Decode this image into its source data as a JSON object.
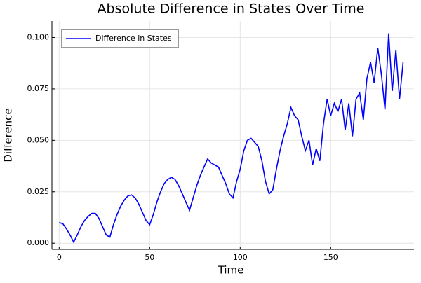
{
  "chart_data": {
    "type": "line",
    "title": "Absolute Difference in States Over Time",
    "x_label": "Time",
    "y_label": "Difference",
    "x": [
      0,
      2,
      4,
      6,
      8,
      10,
      12,
      14,
      16,
      18,
      20,
      22,
      24,
      26,
      28,
      30,
      32,
      34,
      36,
      38,
      40,
      42,
      44,
      46,
      48,
      50,
      52,
      54,
      56,
      58,
      60,
      62,
      64,
      66,
      68,
      70,
      72,
      74,
      76,
      78,
      80,
      82,
      84,
      86,
      88,
      90,
      92,
      94,
      96,
      98,
      100,
      102,
      104,
      106,
      108,
      110,
      112,
      114,
      116,
      118,
      120,
      122,
      124,
      126,
      128,
      130,
      132,
      134,
      136,
      138,
      140,
      142,
      144,
      146,
      148,
      150,
      152,
      154,
      156,
      158,
      160,
      162,
      164,
      166,
      168,
      170,
      172,
      174,
      176,
      178,
      180,
      182,
      184,
      186,
      188,
      190
    ],
    "series": [
      {
        "name": "Difference in States",
        "color": "#0000ff",
        "values": [
          0.01,
          0.0095,
          0.007,
          0.004,
          0.0005,
          0.004,
          0.008,
          0.011,
          0.013,
          0.0145,
          0.0145,
          0.012,
          0.008,
          0.004,
          0.003,
          0.009,
          0.014,
          0.018,
          0.021,
          0.023,
          0.0235,
          0.022,
          0.019,
          0.015,
          0.011,
          0.009,
          0.014,
          0.02,
          0.025,
          0.029,
          0.031,
          0.032,
          0.031,
          0.028,
          0.024,
          0.02,
          0.016,
          0.022,
          0.028,
          0.033,
          0.037,
          0.041,
          0.039,
          0.038,
          0.037,
          0.033,
          0.029,
          0.024,
          0.022,
          0.03,
          0.036,
          0.045,
          0.05,
          0.051,
          0.049,
          0.047,
          0.04,
          0.03,
          0.024,
          0.026,
          0.036,
          0.045,
          0.052,
          0.058,
          0.066,
          0.062,
          0.06,
          0.052,
          0.045,
          0.05,
          0.038,
          0.046,
          0.04,
          0.058,
          0.07,
          0.062,
          0.068,
          0.064,
          0.07,
          0.055,
          0.068,
          0.052,
          0.07,
          0.073,
          0.06,
          0.08,
          0.088,
          0.078,
          0.095,
          0.082,
          0.065,
          0.102,
          0.074,
          0.094,
          0.07,
          0.088
        ]
      }
    ],
    "xlim": [
      -4,
      196
    ],
    "ylim": [
      -0.003,
      0.108
    ],
    "xticks": [
      0,
      50,
      100,
      150
    ],
    "yticks": [
      {
        "value": 0,
        "label": "0.000"
      },
      {
        "value": 0.025,
        "label": "0.025"
      },
      {
        "value": 0.05,
        "label": "0.050"
      },
      {
        "value": 0.075,
        "label": "0.075"
      },
      {
        "value": 0.1,
        "label": "0.100"
      }
    ],
    "grid": true,
    "legend_position": "top-left"
  }
}
